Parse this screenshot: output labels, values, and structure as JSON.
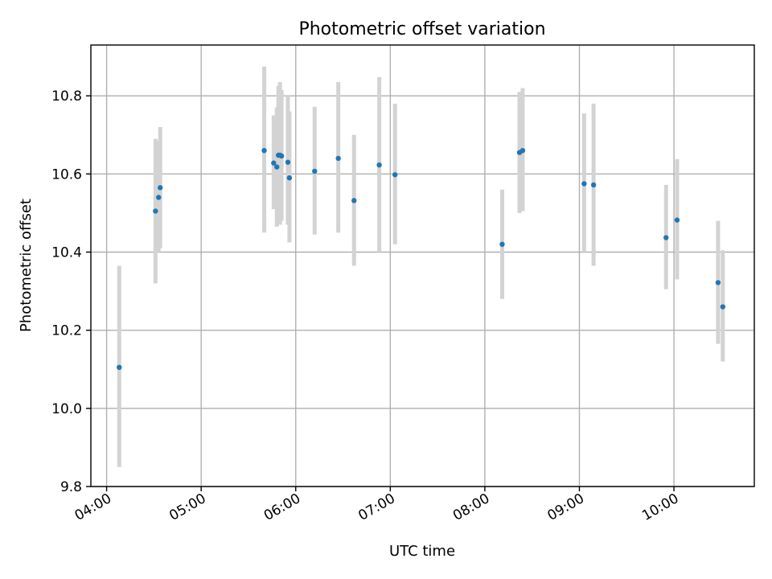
{
  "chart_data": {
    "type": "scatter",
    "title": "Photometric offset variation",
    "xlabel": "UTC time",
    "ylabel": "Photometric offset",
    "x_unit": "hours UTC",
    "xlim": [
      "03:50",
      "10:51"
    ],
    "ylim": [
      9.8,
      10.93
    ],
    "x_ticks": [
      {
        "value": "04:00",
        "label": "04:00"
      },
      {
        "value": "05:00",
        "label": "05:00"
      },
      {
        "value": "06:00",
        "label": "06:00"
      },
      {
        "value": "07:00",
        "label": "07:00"
      },
      {
        "value": "08:00",
        "label": "08:00"
      },
      {
        "value": "09:00",
        "label": "09:00"
      },
      {
        "value": "10:00",
        "label": "10:00"
      }
    ],
    "y_ticks": [
      {
        "value": 9.8,
        "label": "9.8"
      },
      {
        "value": 10.0,
        "label": "10.0"
      },
      {
        "value": 10.2,
        "label": "10.2"
      },
      {
        "value": 10.4,
        "label": "10.4"
      },
      {
        "value": 10.6,
        "label": "10.6"
      },
      {
        "value": 10.8,
        "label": "10.8"
      }
    ],
    "grid": true,
    "point_color": "#1f77b4",
    "errorbar_color": "#d3d3d3",
    "points": [
      {
        "x": "04:08",
        "y": 10.105,
        "yerr": [
          9.85,
          10.365
        ]
      },
      {
        "x": "04:31",
        "y": 10.505,
        "yerr": [
          10.32,
          10.69
        ]
      },
      {
        "x": "04:33",
        "y": 10.54,
        "yerr": [
          10.4,
          10.685
        ]
      },
      {
        "x": "04:34",
        "y": 10.565,
        "yerr": [
          10.41,
          10.72
        ]
      },
      {
        "x": "05:40",
        "y": 10.66,
        "yerr": [
          10.45,
          10.875
        ]
      },
      {
        "x": "05:46",
        "y": 10.628,
        "yerr": [
          10.51,
          10.75
        ]
      },
      {
        "x": "05:48",
        "y": 10.618,
        "yerr": [
          10.465,
          10.77
        ]
      },
      {
        "x": "05:49",
        "y": 10.648,
        "yerr": [
          10.47,
          10.825
        ]
      },
      {
        "x": "05:50",
        "y": 10.648,
        "yerr": [
          10.47,
          10.835
        ]
      },
      {
        "x": "05:51",
        "y": 10.646,
        "yerr": [
          10.48,
          10.815
        ]
      },
      {
        "x": "05:55",
        "y": 10.63,
        "yerr": [
          10.47,
          10.8
        ]
      },
      {
        "x": "05:56",
        "y": 10.59,
        "yerr": [
          10.425,
          10.76
        ]
      },
      {
        "x": "06:12",
        "y": 10.607,
        "yerr": [
          10.445,
          10.772
        ]
      },
      {
        "x": "06:27",
        "y": 10.64,
        "yerr": [
          10.45,
          10.835
        ]
      },
      {
        "x": "06:37",
        "y": 10.532,
        "yerr": [
          10.365,
          10.7
        ]
      },
      {
        "x": "06:53",
        "y": 10.623,
        "yerr": [
          10.4,
          10.848
        ]
      },
      {
        "x": "07:03",
        "y": 10.598,
        "yerr": [
          10.42,
          10.78
        ]
      },
      {
        "x": "08:11",
        "y": 10.42,
        "yerr": [
          10.28,
          10.56
        ]
      },
      {
        "x": "08:22",
        "y": 10.655,
        "yerr": [
          10.5,
          10.81
        ]
      },
      {
        "x": "08:24",
        "y": 10.66,
        "yerr": [
          10.505,
          10.82
        ]
      },
      {
        "x": "09:03",
        "y": 10.575,
        "yerr": [
          10.4,
          10.755
        ]
      },
      {
        "x": "09:09",
        "y": 10.572,
        "yerr": [
          10.365,
          10.78
        ]
      },
      {
        "x": "09:55",
        "y": 10.437,
        "yerr": [
          10.305,
          10.572
        ]
      },
      {
        "x": "10:02",
        "y": 10.482,
        "yerr": [
          10.33,
          10.638
        ]
      },
      {
        "x": "10:28",
        "y": 10.322,
        "yerr": [
          10.165,
          10.48
        ]
      },
      {
        "x": "10:31",
        "y": 10.26,
        "yerr": [
          10.12,
          10.405
        ]
      }
    ]
  }
}
